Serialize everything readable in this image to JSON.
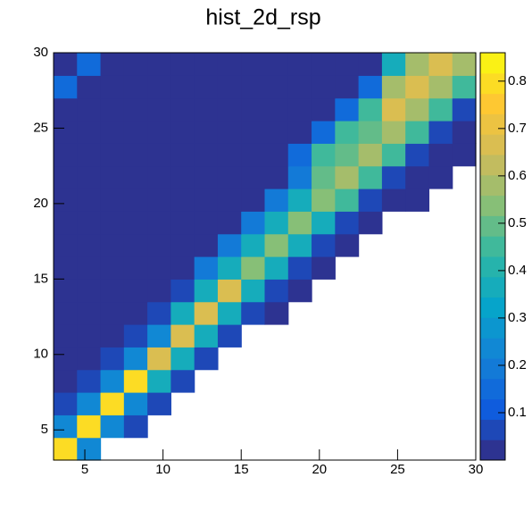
{
  "chart_data": {
    "type": "heatmap",
    "title": "hist_2d_rsp",
    "xlim": [
      3,
      30
    ],
    "ylim": [
      3,
      30
    ],
    "zlim": [
      0,
      0.86
    ],
    "xticks": [
      5,
      10,
      15,
      20,
      25,
      30
    ],
    "yticks": [
      5,
      10,
      15,
      20,
      25,
      30
    ],
    "zticks": [
      0.1,
      0.2,
      0.3,
      0.4,
      0.5,
      0.6,
      0.7,
      0.8
    ],
    "colormap": [
      "#35297e",
      "#0f5cdd",
      "#1481d6",
      "#06a4ca",
      "#2eb7a4",
      "#87bf77",
      "#d1bb59",
      "#fec832",
      "#f9fb0e"
    ],
    "xbins": [
      3,
      4.5,
      6,
      7.5,
      9,
      10.5,
      12,
      13.5,
      15,
      16.5,
      18,
      19.5,
      21,
      22.5,
      24,
      25.5,
      27,
      28.5,
      30
    ],
    "ybins": [
      3,
      4.5,
      6,
      7.5,
      9,
      10.5,
      12,
      13.5,
      15,
      16.5,
      18,
      19.5,
      21,
      22.5,
      24,
      25.5,
      27,
      28.5,
      30
    ],
    "z": [
      [
        0.8,
        0.25,
        null,
        null,
        null,
        null,
        null,
        null,
        null,
        null,
        null,
        null,
        null,
        null,
        null,
        null,
        null,
        null
      ],
      [
        0.25,
        0.8,
        0.25,
        0.05,
        null,
        null,
        null,
        null,
        null,
        null,
        null,
        null,
        null,
        null,
        null,
        null,
        null,
        null
      ],
      [
        0.05,
        0.25,
        0.8,
        0.25,
        0.05,
        null,
        null,
        null,
        null,
        null,
        null,
        null,
        null,
        null,
        null,
        null,
        null,
        null
      ],
      [
        0.02,
        0.05,
        0.25,
        0.8,
        0.35,
        0.05,
        null,
        null,
        null,
        null,
        null,
        null,
        null,
        null,
        null,
        null,
        null,
        null
      ],
      [
        0.02,
        0.02,
        0.05,
        0.25,
        0.65,
        0.35,
        0.05,
        null,
        null,
        null,
        null,
        null,
        null,
        null,
        null,
        null,
        null,
        null
      ],
      [
        0.02,
        0.02,
        0.02,
        0.05,
        0.25,
        0.65,
        0.35,
        0.05,
        null,
        null,
        null,
        null,
        null,
        null,
        null,
        null,
        null,
        null
      ],
      [
        0.02,
        0.02,
        0.02,
        0.02,
        0.05,
        0.35,
        0.65,
        0.35,
        0.05,
        0.02,
        null,
        null,
        null,
        null,
        null,
        null,
        null,
        null
      ],
      [
        0.02,
        0.02,
        0.02,
        0.02,
        0.02,
        0.05,
        0.35,
        0.65,
        0.35,
        0.05,
        0.02,
        null,
        null,
        null,
        null,
        null,
        null,
        null
      ],
      [
        0.02,
        0.02,
        0.02,
        0.02,
        0.02,
        0.02,
        0.2,
        0.35,
        0.55,
        0.35,
        0.05,
        0.02,
        null,
        null,
        null,
        null,
        null,
        null
      ],
      [
        0.02,
        0.02,
        0.02,
        0.02,
        0.02,
        0.02,
        0.02,
        0.2,
        0.35,
        0.55,
        0.35,
        0.05,
        0.02,
        null,
        null,
        null,
        null,
        null
      ],
      [
        0.02,
        0.02,
        0.02,
        0.02,
        0.02,
        0.02,
        0.02,
        0.02,
        0.2,
        0.35,
        0.55,
        0.35,
        0.05,
        0.02,
        null,
        null,
        null,
        null
      ],
      [
        0.02,
        0.02,
        0.02,
        0.02,
        0.02,
        0.02,
        0.02,
        0.02,
        0.02,
        0.2,
        0.35,
        0.55,
        0.45,
        0.05,
        0.02,
        0.02,
        null,
        null
      ],
      [
        0.02,
        0.02,
        0.02,
        0.02,
        0.02,
        0.02,
        0.02,
        0.02,
        0.02,
        0.02,
        0.2,
        0.5,
        0.6,
        0.45,
        0.05,
        0.02,
        0.02,
        null
      ],
      [
        0.02,
        0.02,
        0.02,
        0.02,
        0.02,
        0.02,
        0.02,
        0.02,
        0.02,
        0.02,
        0.15,
        0.45,
        0.5,
        0.6,
        0.45,
        0.05,
        0.02,
        0.02
      ],
      [
        0.02,
        0.02,
        0.02,
        0.02,
        0.02,
        0.02,
        0.02,
        0.02,
        0.02,
        0.02,
        0.02,
        0.15,
        0.45,
        0.5,
        0.6,
        0.45,
        0.05,
        0.02
      ],
      [
        0.02,
        0.02,
        0.02,
        0.02,
        0.02,
        0.02,
        0.02,
        0.02,
        0.02,
        0.02,
        0.02,
        0.02,
        0.15,
        0.45,
        0.65,
        0.6,
        0.45,
        0.05
      ],
      [
        0.15,
        0.02,
        0.02,
        0.02,
        0.02,
        0.02,
        0.02,
        0.02,
        0.02,
        0.02,
        0.02,
        0.02,
        0.02,
        0.15,
        0.6,
        0.65,
        0.6,
        0.45
      ],
      [
        0.02,
        0.15,
        0.02,
        0.02,
        0.02,
        0.02,
        0.02,
        0.02,
        0.02,
        0.02,
        0.02,
        0.02,
        0.02,
        0.02,
        0.35,
        0.6,
        0.65,
        0.6
      ]
    ]
  }
}
